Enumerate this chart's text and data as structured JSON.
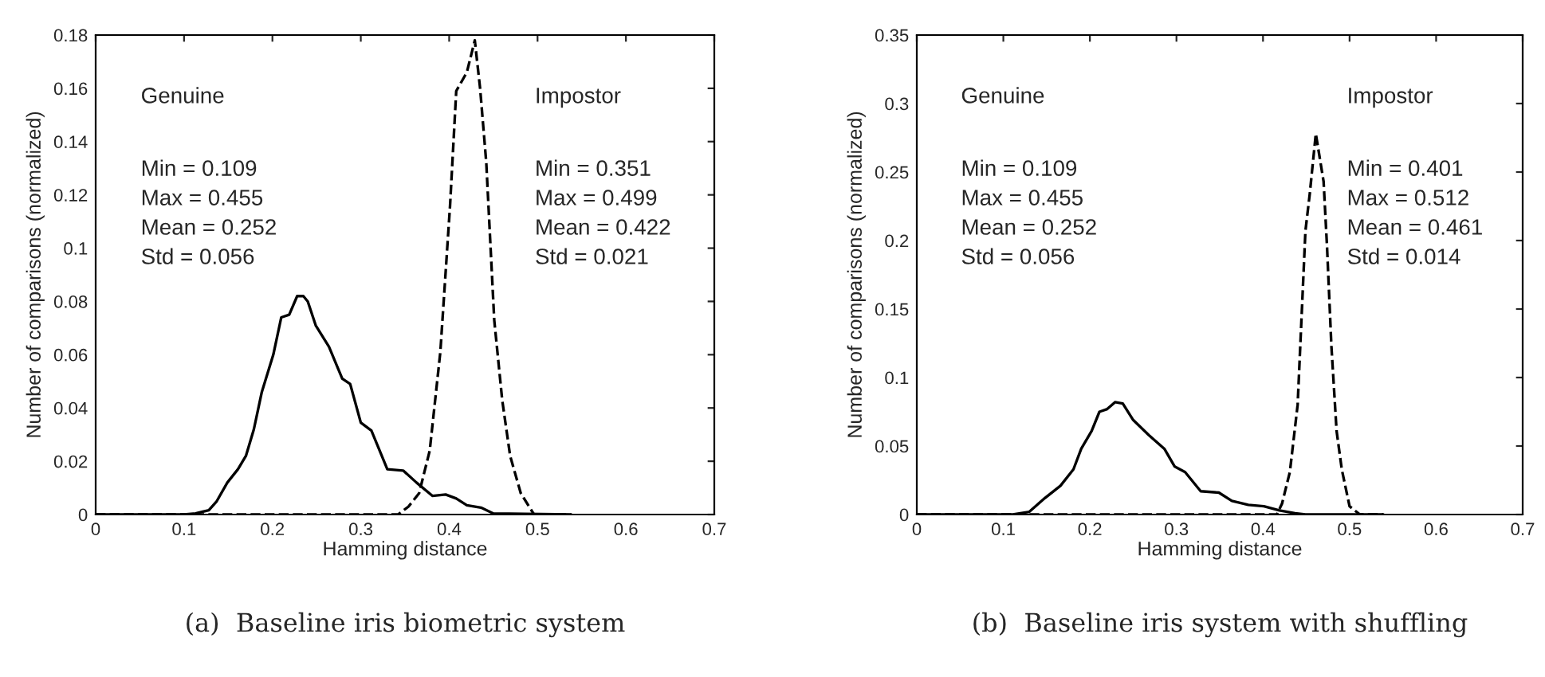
{
  "chart_data": [
    {
      "type": "line",
      "xlabel": "Hamming distance",
      "ylabel": "Number of comparisons (normalized)",
      "xlim": [
        0,
        0.7
      ],
      "ylim": [
        0,
        0.18
      ],
      "xticks": [
        0,
        0.1,
        0.2,
        0.3,
        0.4,
        0.5,
        0.6,
        0.7
      ],
      "yticks": [
        0,
        0.02,
        0.04,
        0.06,
        0.08,
        0.1,
        0.12,
        0.14,
        0.16,
        0.18
      ],
      "grid": false,
      "legend": false,
      "annotations": [
        "Genuine",
        "Min = 0.109\nMax = 0.455\nMean = 0.252\nStd = 0.056",
        "Impostor",
        "Min = 0.351\nMax = 0.499\nMean = 0.422\nStd = 0.021",
        "(a)  Baseline iris biometric system"
      ],
      "series": [
        {
          "color": "#000000",
          "line_style": "solid",
          "x": [
            0,
            0.1,
            0.113,
            0.128,
            0.137,
            0.149,
            0.161,
            0.17,
            0.179,
            0.188,
            0.201,
            0.21,
            0.219,
            0.228,
            0.235,
            0.24,
            0.249,
            0.264,
            0.279,
            0.288,
            0.3,
            0.312,
            0.33,
            0.348,
            0.363,
            0.381,
            0.396,
            0.408,
            0.42,
            0.436,
            0.45,
            0.538
          ],
          "values": [
            0,
            0,
            0.0004,
            0.0016,
            0.005,
            0.012,
            0.017,
            0.022,
            0.032,
            0.046,
            0.06,
            0.074,
            0.075,
            0.082,
            0.082,
            0.08,
            0.071,
            0.063,
            0.051,
            0.049,
            0.0345,
            0.0315,
            0.017,
            0.0165,
            0.012,
            0.007,
            0.0075,
            0.006,
            0.0035,
            0.0026,
            0.0004,
            0
          ]
        },
        {
          "color": "#000000",
          "line_style": "dashed",
          "x": [
            0,
            0.342,
            0.354,
            0.366,
            0.378,
            0.39,
            0.401,
            0.408,
            0.42,
            0.426,
            0.429,
            0.435,
            0.442,
            0.451,
            0.46,
            0.469,
            0.481,
            0.496,
            0.538
          ],
          "values": [
            0,
            0,
            0.003,
            0.008,
            0.024,
            0.061,
            0.116,
            0.159,
            0.166,
            0.174,
            0.178,
            0.16,
            0.132,
            0.073,
            0.043,
            0.022,
            0.008,
            0,
            0
          ]
        }
      ]
    },
    {
      "type": "line",
      "xlabel": "Hamming distance",
      "ylabel": "Number of comparisons (normalized)",
      "xlim": [
        0,
        0.7
      ],
      "ylim": [
        0,
        0.35
      ],
      "xticks": [
        0,
        0.1,
        0.2,
        0.3,
        0.4,
        0.5,
        0.6,
        0.7
      ],
      "yticks": [
        0,
        0.05,
        0.1,
        0.15,
        0.2,
        0.25,
        0.3,
        0.35
      ],
      "grid": false,
      "legend": false,
      "annotations": [
        "Genuine",
        "Min = 0.109\nMax = 0.455\nMean = 0.252\nStd = 0.056",
        "Impostor",
        "Min = 0.401\nMax = 0.512\nMean = 0.461\nStd = 0.014",
        "(b)  Baseline iris system with shuffling"
      ],
      "series": [
        {
          "color": "#000000",
          "line_style": "solid",
          "x": [
            0,
            0.111,
            0.13,
            0.148,
            0.166,
            0.181,
            0.19,
            0.202,
            0.211,
            0.22,
            0.229,
            0.238,
            0.25,
            0.268,
            0.286,
            0.298,
            0.31,
            0.328,
            0.349,
            0.364,
            0.383,
            0.401,
            0.419,
            0.437,
            0.449,
            0.539
          ],
          "values": [
            0,
            0,
            0.002,
            0.012,
            0.021,
            0.033,
            0.048,
            0.061,
            0.075,
            0.077,
            0.082,
            0.081,
            0.069,
            0.058,
            0.048,
            0.035,
            0.031,
            0.017,
            0.016,
            0.01,
            0.007,
            0.006,
            0.003,
            0.001,
            0,
            0
          ]
        },
        {
          "color": "#000000",
          "line_style": "dashed",
          "x": [
            0,
            0.416,
            0.422,
            0.431,
            0.44,
            0.449,
            0.454,
            0.461,
            0.47,
            0.474,
            0.479,
            0.485,
            0.491,
            0.5,
            0.512,
            0.539
          ],
          "values": [
            0,
            0,
            0.008,
            0.031,
            0.08,
            0.207,
            0.234,
            0.278,
            0.243,
            0.195,
            0.123,
            0.061,
            0.033,
            0.006,
            0,
            0
          ]
        }
      ]
    }
  ]
}
